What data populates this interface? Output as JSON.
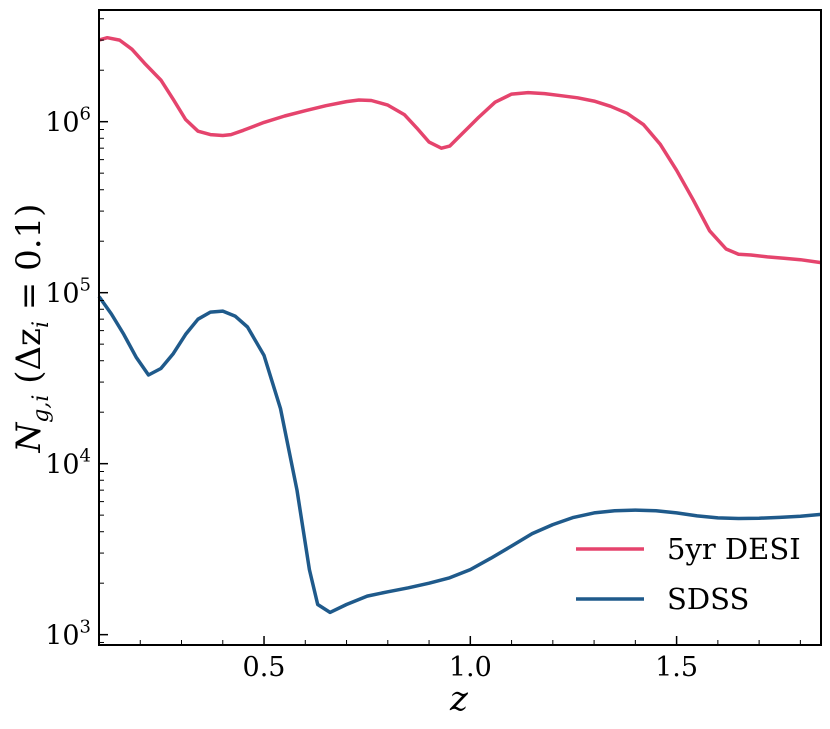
{
  "chart_data": {
    "type": "line",
    "title": "",
    "xlabel": "z",
    "ylabel": "N_{g,i} (Δz_i = 0.1)",
    "ylabel_parts": {
      "main": "N",
      "sub": "g,i",
      "rest": " (Δz",
      "sub2": "i",
      "tail": " = 0.1)"
    },
    "xscale": "linear",
    "yscale": "log",
    "xlim": [
      0.1,
      1.85
    ],
    "ylim": [
      870,
      4500000
    ],
    "xticks": [
      0.5,
      1.0,
      1.5
    ],
    "xtick_labels": [
      "0.5",
      "1.0",
      "1.5"
    ],
    "yticks": [
      1000,
      10000,
      100000,
      1000000
    ],
    "ytick_labels": [
      {
        "base": "10",
        "exp": "3"
      },
      {
        "base": "10",
        "exp": "4"
      },
      {
        "base": "10",
        "exp": "5"
      },
      {
        "base": "10",
        "exp": "6"
      }
    ],
    "grid": false,
    "legend_position": "lower right",
    "series": [
      {
        "name": "5yr DESI",
        "color": "#e5446d",
        "x": [
          0.1,
          0.12,
          0.15,
          0.18,
          0.21,
          0.25,
          0.28,
          0.31,
          0.34,
          0.37,
          0.4,
          0.42,
          0.45,
          0.5,
          0.55,
          0.6,
          0.65,
          0.7,
          0.73,
          0.76,
          0.8,
          0.84,
          0.87,
          0.9,
          0.93,
          0.95,
          0.98,
          1.02,
          1.06,
          1.1,
          1.14,
          1.18,
          1.22,
          1.26,
          1.3,
          1.34,
          1.38,
          1.42,
          1.46,
          1.5,
          1.54,
          1.58,
          1.62,
          1.65,
          1.68,
          1.72,
          1.76,
          1.8,
          1.85
        ],
        "y": [
          3000000,
          3100000,
          3000000,
          2650000,
          2200000,
          1750000,
          1350000,
          1030000,
          880000,
          840000,
          830000,
          840000,
          890000,
          990000,
          1080000,
          1160000,
          1240000,
          1310000,
          1340000,
          1330000,
          1250000,
          1100000,
          920000,
          760000,
          700000,
          720000,
          850000,
          1060000,
          1300000,
          1450000,
          1480000,
          1460000,
          1420000,
          1380000,
          1320000,
          1230000,
          1120000,
          960000,
          740000,
          520000,
          350000,
          230000,
          180000,
          168000,
          166000,
          162000,
          159000,
          156000,
          150000
        ]
      },
      {
        "name": "SDSS",
        "color": "#1f5a8b",
        "x": [
          0.1,
          0.13,
          0.16,
          0.19,
          0.22,
          0.25,
          0.28,
          0.31,
          0.34,
          0.37,
          0.4,
          0.43,
          0.46,
          0.5,
          0.54,
          0.58,
          0.61,
          0.63,
          0.66,
          0.7,
          0.75,
          0.8,
          0.85,
          0.9,
          0.95,
          1.0,
          1.05,
          1.1,
          1.15,
          1.2,
          1.25,
          1.3,
          1.35,
          1.4,
          1.45,
          1.5,
          1.55,
          1.6,
          1.65,
          1.7,
          1.75,
          1.8,
          1.85
        ],
        "y": [
          95000,
          75000,
          57000,
          42000,
          33000,
          36000,
          44000,
          57000,
          70000,
          77000,
          78000,
          73000,
          63000,
          43000,
          21000,
          7000,
          2400,
          1500,
          1350,
          1500,
          1680,
          1780,
          1880,
          2000,
          2150,
          2400,
          2800,
          3300,
          3900,
          4400,
          4850,
          5150,
          5300,
          5350,
          5300,
          5150,
          4950,
          4820,
          4780,
          4800,
          4850,
          4930,
          5050
        ]
      }
    ]
  }
}
